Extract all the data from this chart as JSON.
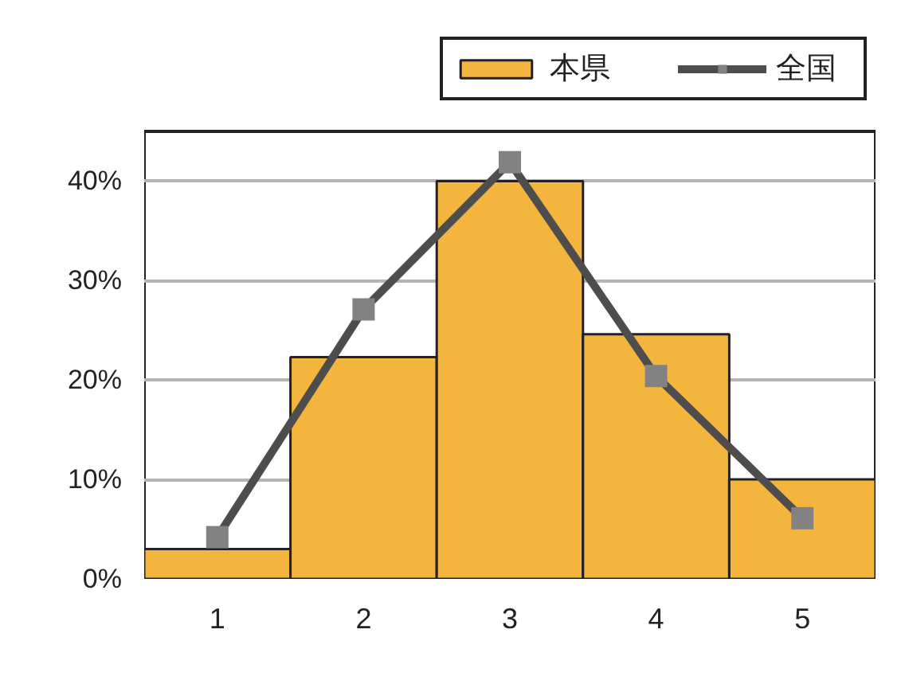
{
  "chart_data": {
    "type": "bar",
    "categories": [
      "1",
      "2",
      "3",
      "4",
      "5"
    ],
    "series": [
      {
        "name": "本県",
        "color": "#f4b53f",
        "values": [
          3,
          22.3,
          40,
          24.6,
          10
        ]
      },
      {
        "name": "全国",
        "type": "line",
        "color": "#4d4d4d",
        "marker": "square",
        "values": [
          4.2,
          27.1,
          41.9,
          20.4,
          6.1
        ]
      }
    ],
    "ylim": [
      0,
      45
    ],
    "yticks": [
      {
        "value": 0,
        "label": "0%"
      },
      {
        "value": 10,
        "label": "10%"
      },
      {
        "value": 20,
        "label": "20%"
      },
      {
        "value": 30,
        "label": "30%"
      },
      {
        "value": 40,
        "label": "40%"
      }
    ],
    "grid": "y",
    "legend": "top right"
  }
}
